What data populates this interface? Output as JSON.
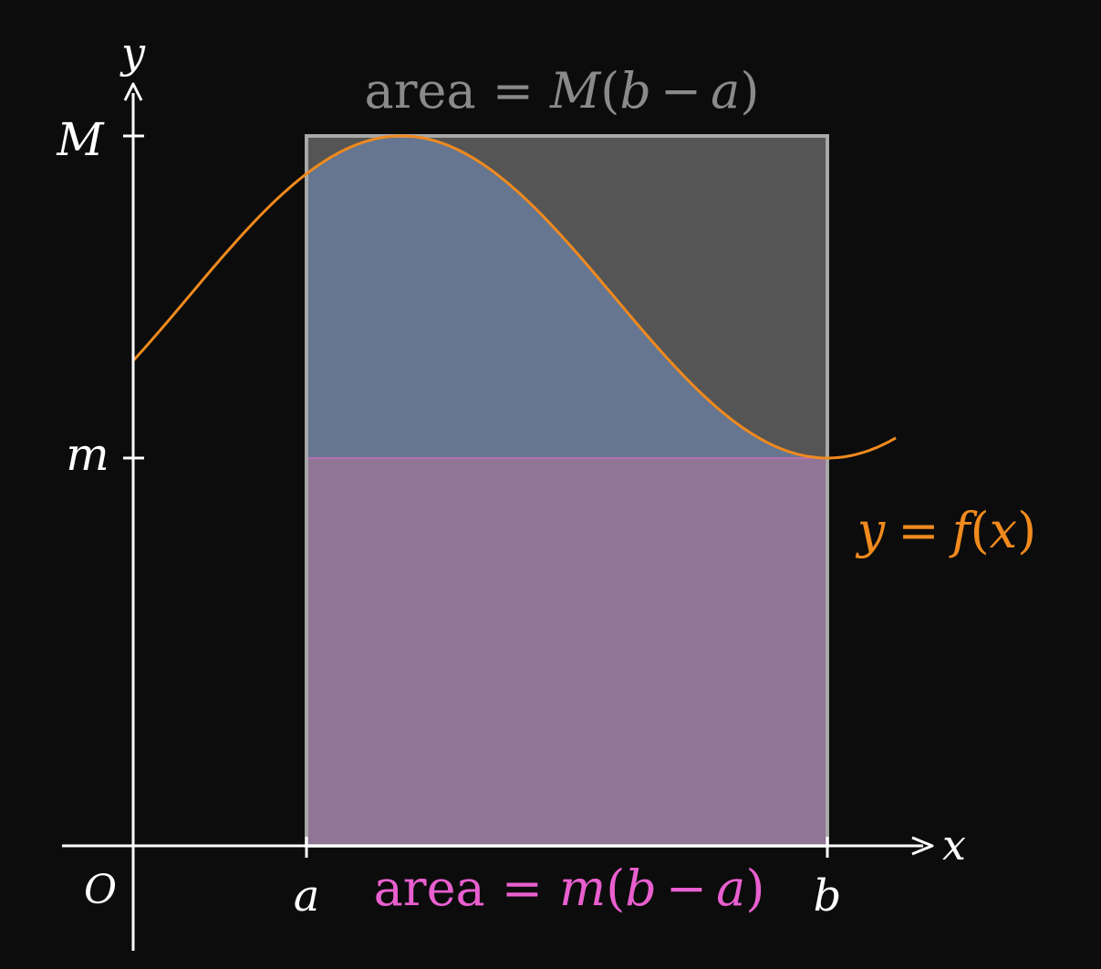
{
  "diagram": {
    "type": "integral-mean-value-bounds",
    "labels": {
      "y_axis": "y",
      "x_axis": "x",
      "origin": "O",
      "upper_bound": "M",
      "lower_bound": "m",
      "left_endpoint": "a",
      "right_endpoint": "b"
    },
    "upper_area": {
      "word": "area",
      "eq": "=",
      "coef": "M",
      "open": "(",
      "b": "b",
      "minus": "−",
      "a": "a",
      "close": ")"
    },
    "lower_area": {
      "word": "area",
      "eq": "=",
      "coef": "m",
      "open": "(",
      "b": "b",
      "minus": "−",
      "a": "a",
      "close": ")"
    },
    "curve_label": {
      "y": "y",
      "eq": "=",
      "f": "f",
      "open": "(",
      "x": "x",
      "close": ")"
    },
    "colors": {
      "background": "#0c0c0c",
      "axes": "#ffffff",
      "curve": "#f08a1e",
      "upper_rect_fill": "#555555",
      "upper_rect_stroke": "#a8a8a8",
      "under_curve_fill": "#667690",
      "lower_rect_fill": "#917596",
      "lower_label": "#e95fcf",
      "upper_label": "#8a8a8a"
    }
  }
}
